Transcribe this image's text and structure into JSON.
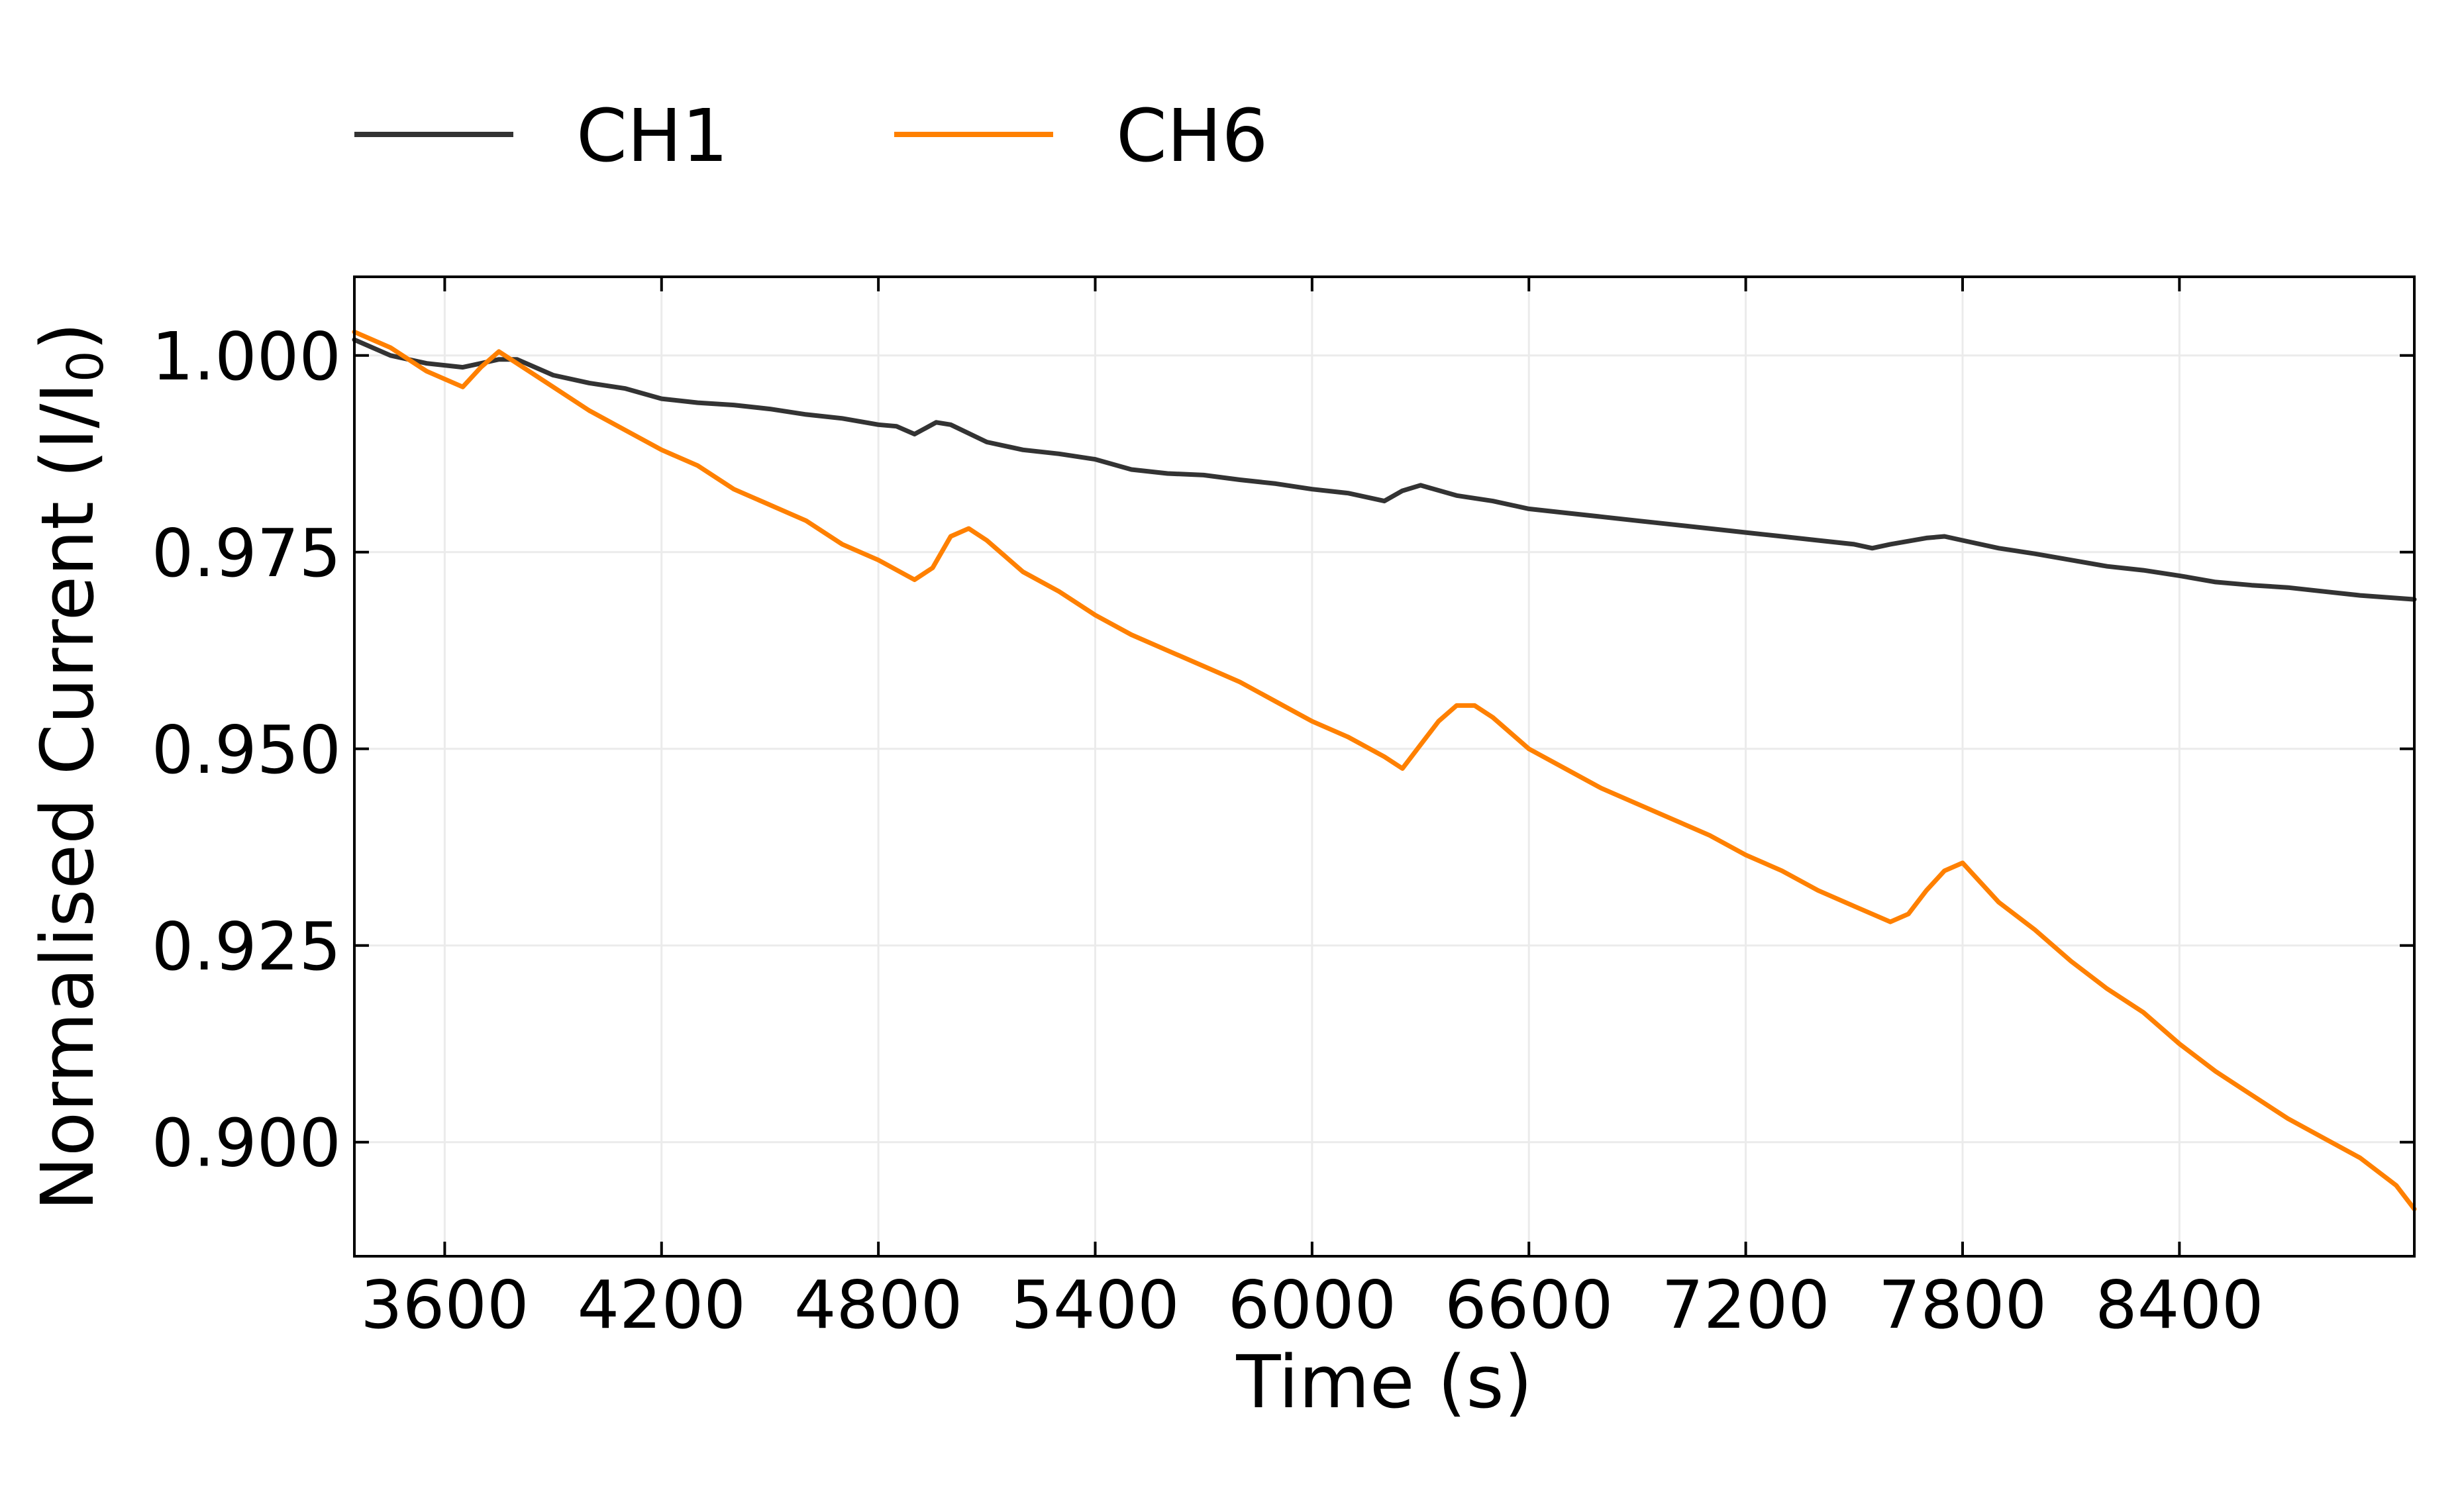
{
  "chart_data": {
    "type": "line",
    "xlabel": "Time (s)",
    "ylabel": "Normalised Current (I/I",
    "ylabel_subscript": "0",
    "ylabel_close": ")",
    "xlim": [
      3350,
      9050
    ],
    "ylim": [
      0.8855,
      1.01
    ],
    "xticks": [
      3600,
      4200,
      4800,
      5400,
      6000,
      6600,
      7200,
      7800,
      8400
    ],
    "xtick_labels": [
      "3600",
      "4200",
      "4800",
      "5400",
      "6000",
      "6600",
      "7200",
      "7800",
      "8400"
    ],
    "yticks": [
      0.9,
      0.925,
      0.95,
      0.975,
      1.0
    ],
    "ytick_labels": [
      "0.900",
      "0.925",
      "0.950",
      "0.975",
      "1.000"
    ],
    "grid": true,
    "legend_position": "top-left",
    "series": [
      {
        "name": "CH1",
        "color": "#333333",
        "x": [
          3350,
          3450,
          3550,
          3650,
          3700,
          3750,
          3800,
          3900,
          4000,
          4100,
          4200,
          4300,
          4400,
          4500,
          4600,
          4700,
          4800,
          4850,
          4900,
          4960,
          5000,
          5100,
          5200,
          5300,
          5400,
          5500,
          5600,
          5700,
          5800,
          5900,
          6000,
          6100,
          6200,
          6250,
          6300,
          6400,
          6500,
          6600,
          6700,
          6800,
          6900,
          7000,
          7100,
          7200,
          7300,
          7400,
          7500,
          7550,
          7600,
          7700,
          7750,
          7800,
          7900,
          8000,
          8100,
          8200,
          8300,
          8400,
          8500,
          8600,
          8700,
          8800,
          8900,
          9050
        ],
        "y": [
          1.002,
          1.0,
          0.999,
          0.9985,
          0.999,
          0.9995,
          0.9995,
          0.9975,
          0.9965,
          0.9958,
          0.9945,
          0.994,
          0.9937,
          0.9932,
          0.9925,
          0.992,
          0.9912,
          0.991,
          0.99,
          0.9915,
          0.9912,
          0.989,
          0.988,
          0.9875,
          0.9868,
          0.9855,
          0.985,
          0.9848,
          0.9842,
          0.9837,
          0.983,
          0.9825,
          0.9815,
          0.9828,
          0.9835,
          0.9822,
          0.9815,
          0.9805,
          0.98,
          0.9795,
          0.979,
          0.9785,
          0.978,
          0.9775,
          0.977,
          0.9765,
          0.976,
          0.9755,
          0.976,
          0.9768,
          0.977,
          0.9765,
          0.9755,
          0.9748,
          0.974,
          0.9732,
          0.9727,
          0.972,
          0.9712,
          0.9708,
          0.9705,
          0.97,
          0.9695,
          0.969
        ]
      },
      {
        "name": "CH6",
        "color": "#ff8000",
        "x": [
          3350,
          3450,
          3550,
          3650,
          3700,
          3750,
          3800,
          3900,
          4000,
          4100,
          4200,
          4300,
          4400,
          4500,
          4600,
          4700,
          4800,
          4900,
          4950,
          5000,
          5050,
          5100,
          5150,
          5200,
          5300,
          5400,
          5500,
          5600,
          5700,
          5800,
          5900,
          6000,
          6100,
          6200,
          6250,
          6300,
          6350,
          6400,
          6450,
          6500,
          6600,
          6700,
          6800,
          6900,
          7000,
          7100,
          7200,
          7300,
          7400,
          7500,
          7600,
          7650,
          7700,
          7750,
          7800,
          7850,
          7900,
          8000,
          8100,
          8200,
          8300,
          8400,
          8500,
          8600,
          8700,
          8800,
          8900,
          9000,
          9050
        ],
        "y": [
          1.003,
          1.001,
          0.998,
          0.996,
          0.9985,
          1.0005,
          0.999,
          0.996,
          0.993,
          0.9905,
          0.988,
          0.986,
          0.983,
          0.981,
          0.979,
          0.976,
          0.974,
          0.9715,
          0.973,
          0.977,
          0.978,
          0.9765,
          0.9745,
          0.9725,
          0.97,
          0.967,
          0.9645,
          0.9625,
          0.9605,
          0.9585,
          0.956,
          0.9535,
          0.9515,
          0.949,
          0.9475,
          0.9505,
          0.9535,
          0.9555,
          0.9555,
          0.954,
          0.95,
          0.9475,
          0.945,
          0.943,
          0.941,
          0.939,
          0.9365,
          0.9345,
          0.932,
          0.93,
          0.928,
          0.929,
          0.932,
          0.9345,
          0.9355,
          0.933,
          0.9305,
          0.927,
          0.923,
          0.9195,
          0.9165,
          0.9125,
          0.909,
          0.906,
          0.903,
          0.9005,
          0.898,
          0.8945,
          0.8915
        ]
      }
    ]
  }
}
